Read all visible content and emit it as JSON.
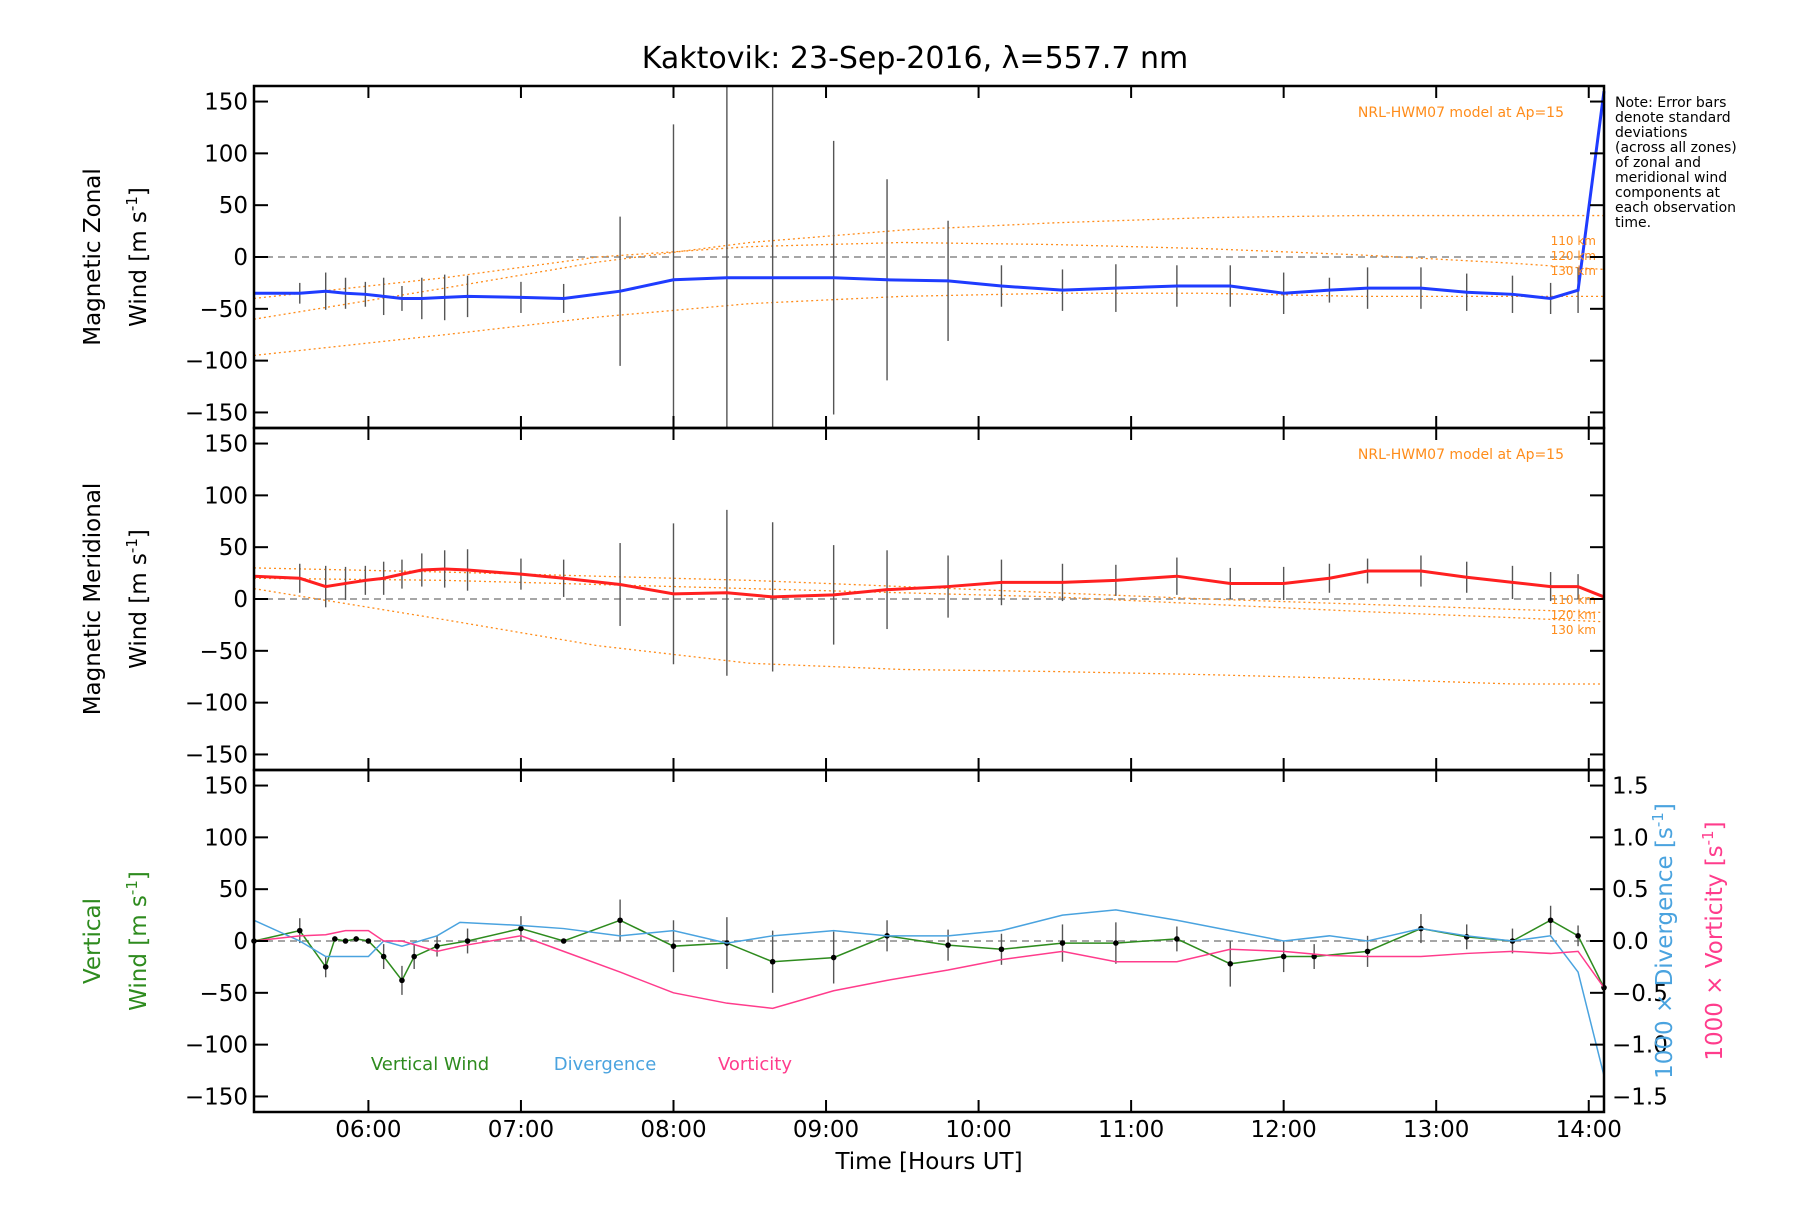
{
  "chart_data": {
    "type": "line",
    "title": "Kaktovik: 23-Sep-2016, λ=557.7 nm",
    "xlabel": "Time [Hours UT]",
    "x_ticks": [
      "06:00",
      "07:00",
      "08:00",
      "09:00",
      "10:00",
      "11:00",
      "12:00",
      "13:00",
      "14:00"
    ],
    "xlim": [
      5.25,
      14.1
    ],
    "y_ticks": [
      "150",
      "100",
      "50",
      "0",
      "−50",
      "−100",
      "−150"
    ],
    "ylim": [
      -165,
      165
    ],
    "right_ticks": [
      "1.5",
      "1.0",
      "0.5",
      "0.0",
      "−0.5",
      "−1.0",
      "−1.5"
    ],
    "right_lim": [
      -1.65,
      1.65
    ],
    "note": [
      "Note: Error bars",
      "denote standard",
      "deviations",
      "(across all zones)",
      "of zonal and",
      "meridional wind",
      "components at",
      "each observation",
      "time."
    ],
    "model_label": "NRL-HWM07 model at Ap=15",
    "altitude_labels": [
      "110 km",
      "120 km",
      "130 km"
    ],
    "colors": {
      "zonal": "#1f3cff",
      "meridional": "#ff2020",
      "vertical": "#2e8b1e",
      "divergence": "#4aa3df",
      "vorticity": "#ff3c8c",
      "model": "#ff8c1a",
      "zero_line": "#888888"
    },
    "panels": [
      {
        "ylabel_line1": "Magnetic Zonal",
        "ylabel_line2": "Wind [m s",
        "sup": "-1",
        "close": "]",
        "series": [
          {
            "key": "zonal",
            "x": [
              5.25,
              5.55,
              5.72,
              5.85,
              5.98,
              6.1,
              6.22,
              6.35,
              6.5,
              6.65,
              7.0,
              7.28,
              7.65,
              8.0,
              8.35,
              8.65,
              9.05,
              9.4,
              9.8,
              10.15,
              10.55,
              10.9,
              11.3,
              11.65,
              12.0,
              12.3,
              12.55,
              12.9,
              13.2,
              13.5,
              13.75,
              13.93,
              14.1
            ],
            "y": [
              -35,
              -35,
              -33,
              -35,
              -36,
              -38,
              -40,
              -40,
              -39,
              -38,
              -39,
              -40,
              -33,
              -22,
              -20,
              -20,
              -20,
              -22,
              -23,
              -28,
              -32,
              -30,
              -28,
              -28,
              -35,
              -32,
              -30,
              -30,
              -34,
              -36,
              -40,
              -32,
              160
            ],
            "err": [
              0,
              10,
              18,
              15,
              12,
              18,
              12,
              20,
              22,
              20,
              15,
              14,
              72,
              150,
              190,
              190,
              132,
              97,
              58,
              20,
              20,
              23,
              20,
              20,
              20,
              12,
              20,
              20,
              18,
              18,
              15,
              22,
              0
            ]
          }
        ],
        "model_lines": [
          {
            "label": "110 km",
            "x": [
              5.25,
              6.5,
              7.5,
              8.5,
              9.5,
              10.5,
              11.5,
              12.5,
              13.5,
              14.1
            ],
            "y": [
              -95,
              -75,
              -58,
              -45,
              -38,
              -35,
              -35,
              -38,
              -38,
              -38
            ]
          },
          {
            "label": "120 km",
            "x": [
              5.25,
              6.5,
              7.5,
              8.5,
              9.5,
              10.5,
              11.5,
              12.5,
              13.5,
              14.1
            ],
            "y": [
              -40,
              -20,
              0,
              10,
              14,
              12,
              8,
              2,
              -6,
              -12
            ]
          },
          {
            "label": "130 km",
            "x": [
              5.25,
              6.5,
              7.5,
              8.5,
              9.5,
              10.5,
              11.5,
              12.5,
              13.5,
              14.1
            ],
            "y": [
              -60,
              -30,
              -5,
              14,
              26,
              33,
              38,
              40,
              40,
              40
            ]
          }
        ]
      },
      {
        "ylabel_line1": "Magnetic Meridional",
        "ylabel_line2": "Wind [m s",
        "sup": "-1",
        "close": "]",
        "series": [
          {
            "key": "meridional",
            "x": [
              5.25,
              5.55,
              5.72,
              5.85,
              5.98,
              6.1,
              6.22,
              6.35,
              6.5,
              6.65,
              7.0,
              7.28,
              7.65,
              8.0,
              8.35,
              8.65,
              9.05,
              9.4,
              9.8,
              10.15,
              10.55,
              10.9,
              11.3,
              11.65,
              12.0,
              12.3,
              12.55,
              12.9,
              13.2,
              13.5,
              13.75,
              13.93,
              14.1
            ],
            "y": [
              22,
              20,
              12,
              15,
              18,
              20,
              24,
              28,
              29,
              28,
              24,
              20,
              14,
              5,
              6,
              2,
              4,
              9,
              12,
              16,
              16,
              18,
              22,
              15,
              15,
              20,
              27,
              27,
              21,
              16,
              12,
              12,
              2
            ],
            "err": [
              0,
              14,
              20,
              16,
              14,
              16,
              14,
              16,
              18,
              20,
              15,
              18,
              40,
              68,
              80,
              72,
              48,
              38,
              30,
              22,
              18,
              15,
              18,
              15,
              16,
              14,
              12,
              15,
              15,
              16,
              14,
              12,
              0
            ]
          }
        ],
        "model_lines": [
          {
            "label": "110 km",
            "x": [
              5.25,
              6.5,
              7.5,
              8.5,
              9.5,
              10.5,
              11.5,
              12.5,
              13.5,
              14.1
            ],
            "y": [
              30,
              26,
              22,
              18,
              12,
              6,
              0,
              -5,
              -10,
              -13
            ]
          },
          {
            "label": "120 km",
            "x": [
              5.25,
              6.5,
              7.5,
              8.5,
              9.5,
              10.5,
              11.5,
              12.5,
              13.5,
              14.1
            ],
            "y": [
              20,
              18,
              14,
              10,
              6,
              2,
              -5,
              -12,
              -18,
              -22
            ]
          },
          {
            "label": "130 km",
            "x": [
              5.25,
              6.5,
              7.5,
              8.5,
              9.5,
              10.5,
              11.5,
              12.5,
              13.5,
              14.1
            ],
            "y": [
              10,
              -20,
              -45,
              -62,
              -68,
              -70,
              -73,
              -77,
              -82,
              -82
            ]
          }
        ]
      },
      {
        "ylabel_line1": "Vertical",
        "ylabel_line2": "Wind [m s",
        "sup": "-1",
        "close": "]",
        "right_label1": "1000 × Divergence [s",
        "right_label2": "1000 × Vorticity [s",
        "right_sup": "-1",
        "right_close": "]",
        "series": [
          {
            "key": "vertical",
            "x": [
              5.25,
              5.55,
              5.72,
              5.78,
              5.85,
              5.92,
              6.0,
              6.1,
              6.22,
              6.3,
              6.45,
              6.65,
              7.0,
              7.28,
              7.65,
              8.0,
              8.35,
              8.65,
              9.05,
              9.4,
              9.8,
              10.15,
              10.55,
              10.9,
              11.3,
              11.65,
              12.0,
              12.2,
              12.55,
              12.9,
              13.2,
              13.5,
              13.75,
              13.93,
              14.1
            ],
            "y": [
              0,
              10,
              -25,
              2,
              0,
              2,
              0,
              -15,
              -38,
              -15,
              -5,
              0,
              12,
              0,
              20,
              -5,
              -2,
              -20,
              -16,
              5,
              -4,
              -8,
              -2,
              -2,
              2,
              -22,
              -15,
              -15,
              -10,
              12,
              4,
              0,
              20,
              5,
              -45
            ],
            "err": [
              0,
              12,
              10,
              0,
              0,
              0,
              0,
              12,
              14,
              12,
              10,
              12,
              12,
              0,
              20,
              25,
              25,
              30,
              25,
              15,
              15,
              15,
              18,
              20,
              12,
              22,
              15,
              12,
              15,
              14,
              12,
              12,
              14,
              10,
              0
            ]
          }
        ],
        "right_series": [
          {
            "key": "divergence",
            "label": "Divergence",
            "x": [
              5.25,
              5.55,
              5.72,
              5.85,
              6.0,
              6.1,
              6.22,
              6.45,
              6.6,
              7.0,
              7.28,
              7.65,
              8.0,
              8.35,
              8.65,
              9.05,
              9.4,
              9.8,
              10.15,
              10.55,
              10.9,
              11.3,
              11.65,
              12.0,
              12.3,
              12.55,
              12.9,
              13.2,
              13.5,
              13.75,
              13.93,
              14.1
            ],
            "y": [
              0.2,
              0.0,
              -0.15,
              -0.15,
              -0.15,
              0.0,
              -0.05,
              0.05,
              0.18,
              0.15,
              0.12,
              0.05,
              0.1,
              -0.02,
              0.05,
              0.1,
              0.05,
              0.05,
              0.1,
              0.25,
              0.3,
              0.2,
              0.1,
              0.0,
              0.05,
              0.0,
              0.12,
              0.05,
              0.0,
              0.05,
              -0.3,
              -1.3
            ]
          },
          {
            "key": "vorticity",
            "label": "Vorticity",
            "x": [
              5.25,
              5.55,
              5.72,
              5.85,
              6.0,
              6.1,
              6.22,
              6.45,
              6.6,
              7.0,
              7.28,
              7.65,
              8.0,
              8.35,
              8.65,
              9.05,
              9.4,
              9.8,
              10.15,
              10.55,
              10.9,
              11.3,
              11.65,
              12.0,
              12.3,
              12.55,
              12.9,
              13.2,
              13.5,
              13.75,
              13.93,
              14.1
            ],
            "y": [
              0.0,
              0.05,
              0.06,
              0.1,
              0.1,
              0.0,
              0.0,
              -0.1,
              -0.05,
              0.05,
              -0.1,
              -0.3,
              -0.5,
              -0.6,
              -0.65,
              -0.48,
              -0.38,
              -0.28,
              -0.18,
              -0.1,
              -0.2,
              -0.2,
              -0.08,
              -0.1,
              -0.14,
              -0.15,
              -0.15,
              -0.12,
              -0.1,
              -0.12,
              -0.1,
              -0.45
            ]
          }
        ],
        "legend": [
          {
            "key": "vertical",
            "label": "Vertical Wind"
          },
          {
            "key": "divergence",
            "label": "Divergence"
          },
          {
            "key": "vorticity",
            "label": "Vorticity"
          }
        ]
      }
    ]
  }
}
